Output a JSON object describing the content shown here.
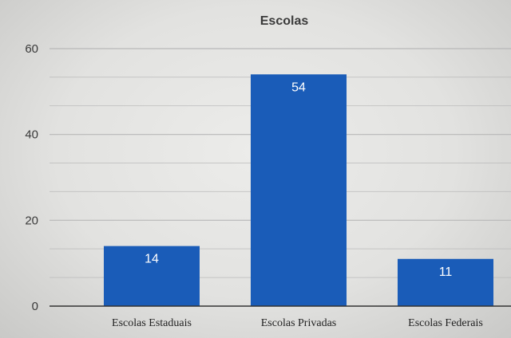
{
  "chart_data": {
    "type": "bar",
    "title": "Escolas",
    "categories": [
      "Escolas Estaduais",
      "Escolas Privadas",
      "Escolas Federais"
    ],
    "values": [
      14,
      54,
      11
    ],
    "ylim": [
      0,
      60
    ],
    "yticks": [
      0,
      20,
      40,
      60
    ],
    "minor_gridlines_every": 6.67,
    "grid": true,
    "data_labels": [
      "14",
      "54",
      "11"
    ],
    "xlabel": "",
    "ylabel": "",
    "bar_color": "#1a5cb8",
    "gridline_color": "#b8b8b8",
    "axis_color": "#333333"
  }
}
